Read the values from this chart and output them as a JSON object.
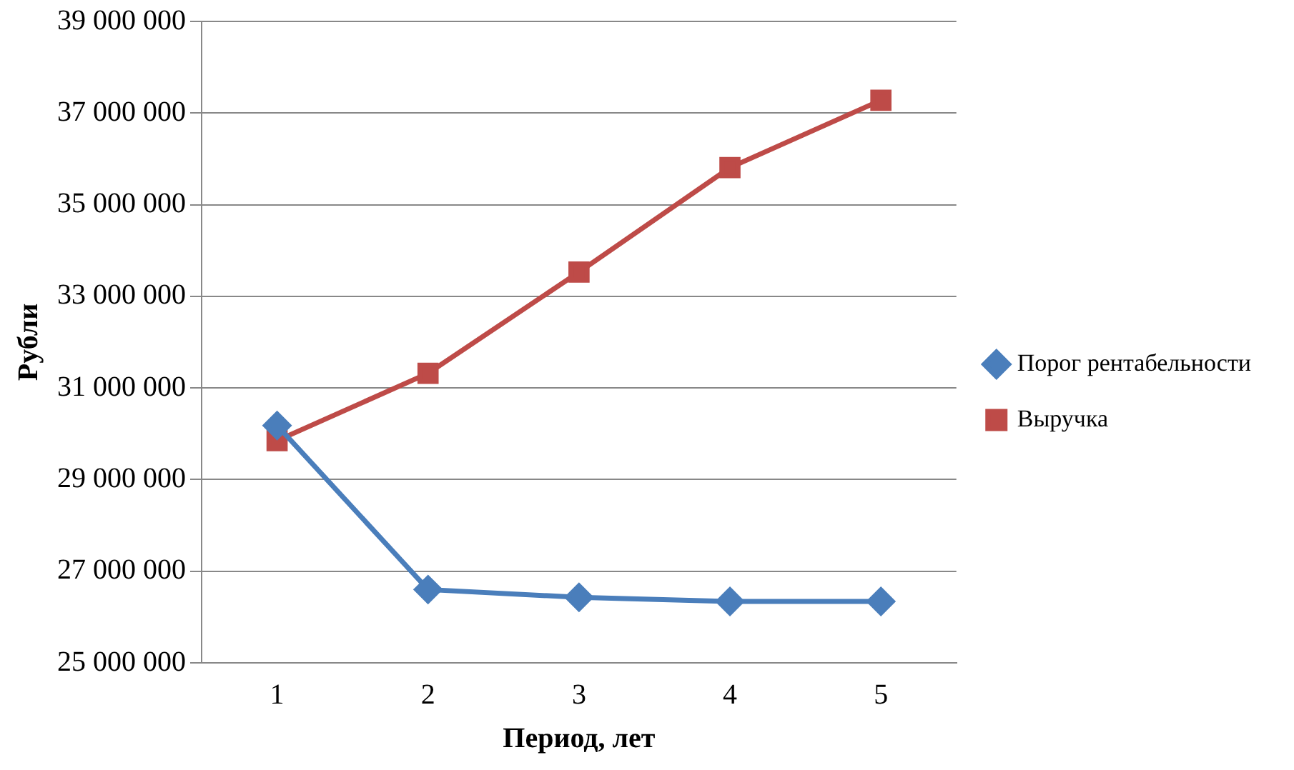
{
  "chart_data": {
    "type": "line",
    "xlabel": "Период, лет",
    "ylabel": "Рубли",
    "categories": [
      "1",
      "2",
      "3",
      "4",
      "5"
    ],
    "series": [
      {
        "name": "Порог рентабельности",
        "color": "#4a7ebb",
        "marker": "diamond",
        "values": [
          30180000,
          26600000,
          26430000,
          26340000,
          26340000
        ]
      },
      {
        "name": "Выручка",
        "color": "#be4b48",
        "marker": "square",
        "values": [
          29850000,
          31320000,
          33530000,
          35810000,
          37280000
        ]
      }
    ],
    "ylim": [
      25000000,
      39000000
    ],
    "yticks": [
      {
        "value": 25000000,
        "label": "25 000 000"
      },
      {
        "value": 27000000,
        "label": "27 000 000"
      },
      {
        "value": 29000000,
        "label": "29 000 000"
      },
      {
        "value": 31000000,
        "label": "31 000 000"
      },
      {
        "value": 33000000,
        "label": "33 000 000"
      },
      {
        "value": 35000000,
        "label": "35 000 000"
      },
      {
        "value": 37000000,
        "label": "37 000 000"
      },
      {
        "value": 39000000,
        "label": "39 000 000"
      }
    ],
    "grid": "y",
    "legend": "right",
    "line_style": "solid"
  }
}
